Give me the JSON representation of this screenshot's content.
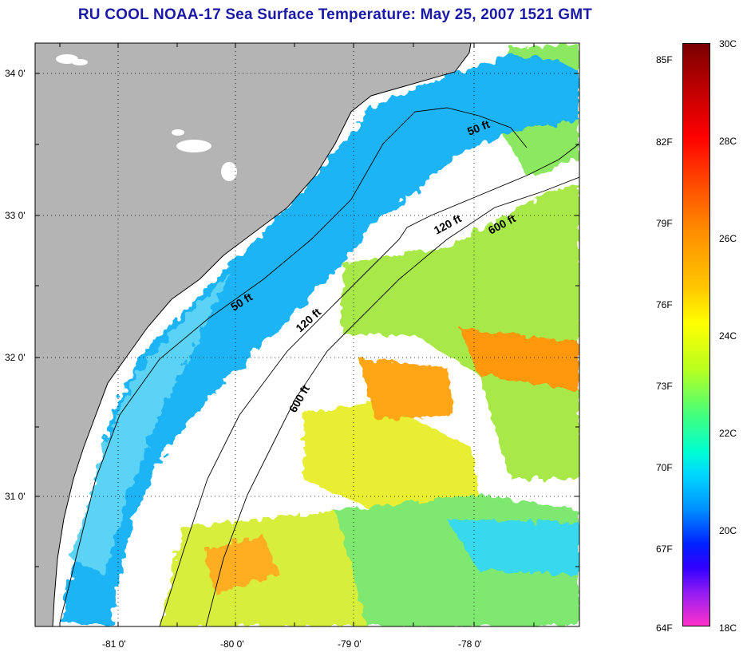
{
  "title": "RU COOL  NOAA-17  Sea Surface Temperature:  May 25, 2007 1521 GMT",
  "map": {
    "lat_labels": [
      "34 0'",
      "33 0'",
      "32 0'",
      "31 0'"
    ],
    "lon_labels": [
      "-81 0'",
      "-80 0'",
      "-79 0'",
      "-78 0'"
    ],
    "isobath_labels": [
      "50 ft",
      "50 ft",
      "120 ft",
      "120 ft",
      "600 ft",
      "600 ft"
    ]
  },
  "colorbar": {
    "f_labels": [
      "85F",
      "82F",
      "79F",
      "76F",
      "73F",
      "70F",
      "67F",
      "64F"
    ],
    "c_labels": [
      "30C",
      "28C",
      "26C",
      "24C",
      "22C",
      "20C",
      "18C"
    ]
  },
  "colors": {
    "title": "#1a1aa6",
    "land": "#b4b4b4",
    "cool_water": "#1eb4f5",
    "warm_water": "#ffa000",
    "mid_water": "#a0e646"
  }
}
